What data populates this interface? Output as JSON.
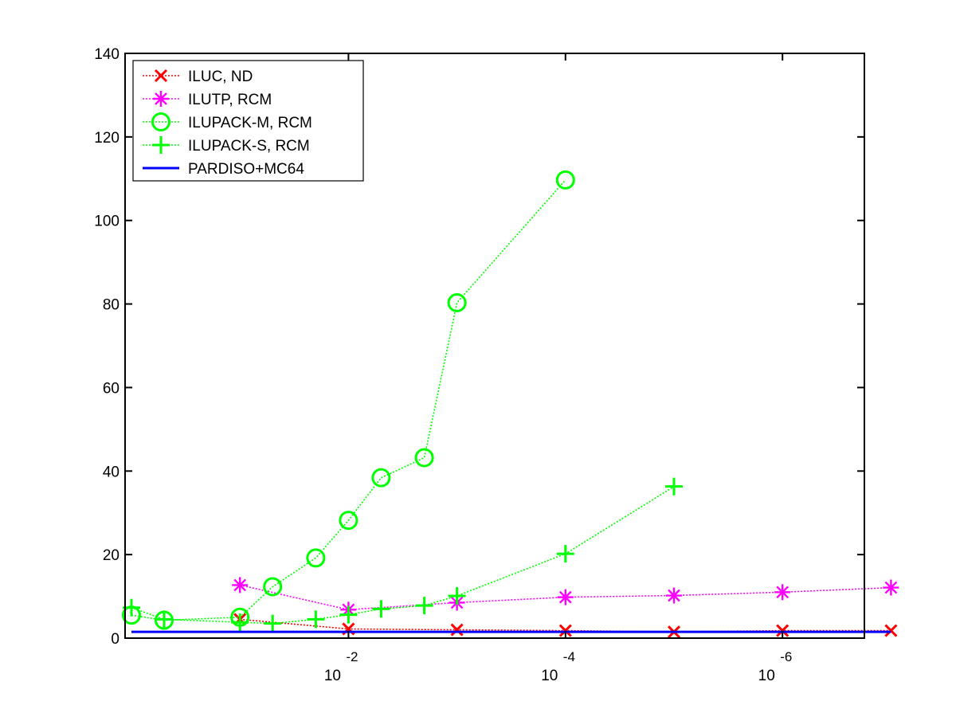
{
  "chart_data": {
    "type": "line",
    "title": "",
    "xlabel": "",
    "ylabel": "",
    "x_scale": "log",
    "x_reversed": true,
    "x_ticks": [
      {
        "value": 0.01,
        "base": "10",
        "exponent": "-2"
      },
      {
        "value": 0.0001,
        "base": "10",
        "exponent": "-4"
      },
      {
        "value": 1e-06,
        "base": "10",
        "exponent": "-6"
      }
    ],
    "ylim": [
      0,
      140
    ],
    "y_ticks": [
      "0",
      "20",
      "40",
      "60",
      "80",
      "100",
      "120",
      "140"
    ],
    "legend_position": "top-left",
    "grid": false,
    "series": [
      {
        "name": "ILUC,  ND",
        "color": "#ff0000",
        "marker": "x",
        "line_style": "dotted",
        "x": [
          0.1,
          0.01,
          0.001,
          0.0001,
          1e-05,
          1e-06,
          1e-07
        ],
        "y": [
          4.5,
          2.2,
          2.0,
          1.8,
          1.5,
          1.8,
          1.8
        ]
      },
      {
        "name": "ILUTP, RCM",
        "color": "#ff00ff",
        "marker": "asterisk",
        "line_style": "dotted",
        "x": [
          0.1,
          0.01,
          0.001,
          0.0001,
          1e-05,
          1e-06,
          1e-07
        ],
        "y": [
          12.7,
          6.8,
          8.5,
          9.8,
          10.2,
          11.0,
          12.1
        ]
      },
      {
        "name": "ILUPACK-M, RCM",
        "color": "#00ff00",
        "marker": "circle",
        "line_style": "dotted",
        "x": [
          1.0,
          0.5,
          0.1,
          0.05,
          0.02,
          0.01,
          0.005,
          0.002,
          0.001,
          0.0001
        ],
        "y": [
          5.5,
          4.3,
          5.0,
          12.3,
          19.2,
          28.2,
          38.4,
          43.2,
          80.3,
          109.7
        ]
      },
      {
        "name": "ILUPACK-S, RCM",
        "color": "#00ff00",
        "marker": "plus",
        "line_style": "dotted",
        "x": [
          1.0,
          0.5,
          0.1,
          0.05,
          0.02,
          0.01,
          0.005,
          0.002,
          0.001,
          0.0001,
          1e-05
        ],
        "y": [
          7.3,
          4.5,
          3.8,
          3.5,
          4.5,
          5.6,
          7.0,
          7.8,
          10.1,
          20.2,
          36.3
        ]
      },
      {
        "name": "PARDISO+MC64",
        "color": "#0000ff",
        "marker": "none",
        "line_style": "solid",
        "x": [
          1.0,
          1e-07
        ],
        "y": [
          1.5,
          1.5
        ]
      }
    ]
  }
}
